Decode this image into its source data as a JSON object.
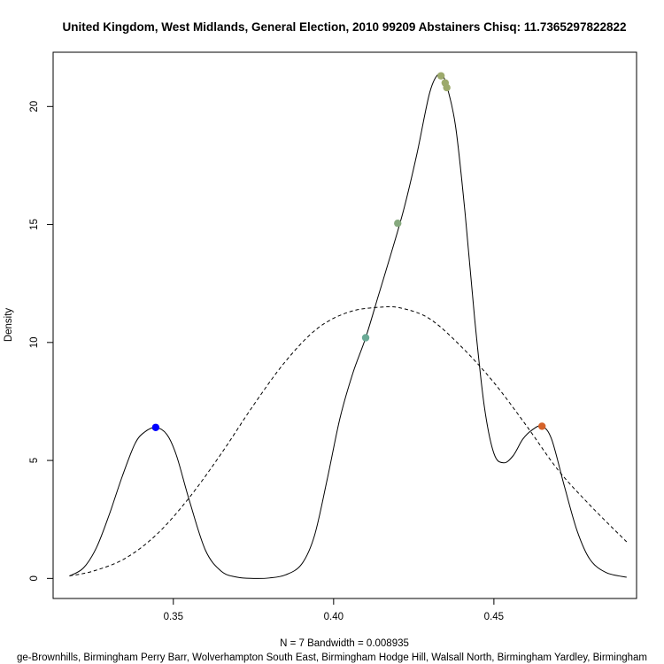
{
  "chart_data": {
    "type": "line",
    "title": "United Kingdom, West Midlands, General Election, 2010 99209 Abstainers Chisq: 11.7365297822822",
    "ylabel": "Density",
    "xlabel": "N = 7   Bandwidth = 0.008935",
    "sub": "ge-Brownhills, Birmingham Perry Barr, Wolverhampton South East, Birmingham Hodge Hill, Walsall North, Birmingham Yardley, Birmingham",
    "xlim": [
      0.3125,
      0.4945
    ],
    "ylim": [
      -0.85,
      22.3
    ],
    "x_ticks": [
      0.35,
      0.4,
      0.45
    ],
    "x_tick_labels": [
      "0.35",
      "0.40",
      "0.45"
    ],
    "y_ticks": [
      0,
      5,
      10,
      15,
      20
    ],
    "y_tick_labels": [
      "0",
      "5",
      "10",
      "15",
      "20"
    ],
    "grid": false,
    "series": [
      {
        "style": "solid",
        "color": "#000000",
        "x": [
          0.3176,
          0.322,
          0.326,
          0.33,
          0.334,
          0.338,
          0.341,
          0.3445,
          0.348,
          0.351,
          0.355,
          0.36,
          0.365,
          0.37,
          0.375,
          0.38,
          0.385,
          0.39,
          0.394,
          0.398,
          0.402,
          0.406,
          0.41,
          0.414,
          0.418,
          0.422,
          0.426,
          0.43,
          0.433,
          0.435,
          0.438,
          0.441,
          0.444,
          0.447,
          0.45,
          0.453,
          0.456,
          0.459,
          0.462,
          0.465,
          0.468,
          0.472,
          0.476,
          0.48,
          0.485,
          0.4914
        ],
        "y": [
          0.1,
          0.45,
          1.3,
          2.7,
          4.3,
          5.7,
          6.2,
          6.4,
          6.1,
          5.2,
          3.3,
          1.2,
          0.3,
          0.05,
          0.0,
          0.02,
          0.15,
          0.6,
          1.8,
          4.2,
          6.8,
          8.7,
          10.2,
          12.0,
          13.8,
          15.7,
          18.0,
          20.6,
          21.4,
          21.0,
          19.2,
          15.5,
          11.0,
          7.3,
          5.3,
          4.9,
          5.2,
          5.9,
          6.3,
          6.45,
          5.9,
          3.9,
          2.0,
          0.8,
          0.25,
          0.05
        ]
      },
      {
        "style": "dashed",
        "color": "#000000",
        "x": [
          0.3176,
          0.325,
          0.335,
          0.345,
          0.355,
          0.365,
          0.375,
          0.385,
          0.395,
          0.405,
          0.415,
          0.4213,
          0.43,
          0.44,
          0.45,
          0.46,
          0.47,
          0.48,
          0.4914
        ],
        "y": [
          0.11,
          0.31,
          0.85,
          1.89,
          3.43,
          5.3,
          7.34,
          9.2,
          10.6,
          11.3,
          11.5,
          11.45,
          11.0,
          9.8,
          8.3,
          6.5,
          4.6,
          3.1,
          1.55
        ]
      }
    ],
    "points": [
      {
        "x": 0.3445,
        "y": 6.4,
        "color": "#0000ff"
      },
      {
        "x": 0.41,
        "y": 10.2,
        "color": "#6aaa96"
      },
      {
        "x": 0.42,
        "y": 15.05,
        "color": "#86a97e"
      },
      {
        "x": 0.4335,
        "y": 21.3,
        "color": "#9daa6c"
      },
      {
        "x": 0.4348,
        "y": 21.0,
        "color": "#9daa6c"
      },
      {
        "x": 0.4353,
        "y": 20.8,
        "color": "#9daa6c"
      },
      {
        "x": 0.465,
        "y": 6.45,
        "color": "#d4622a"
      }
    ]
  }
}
